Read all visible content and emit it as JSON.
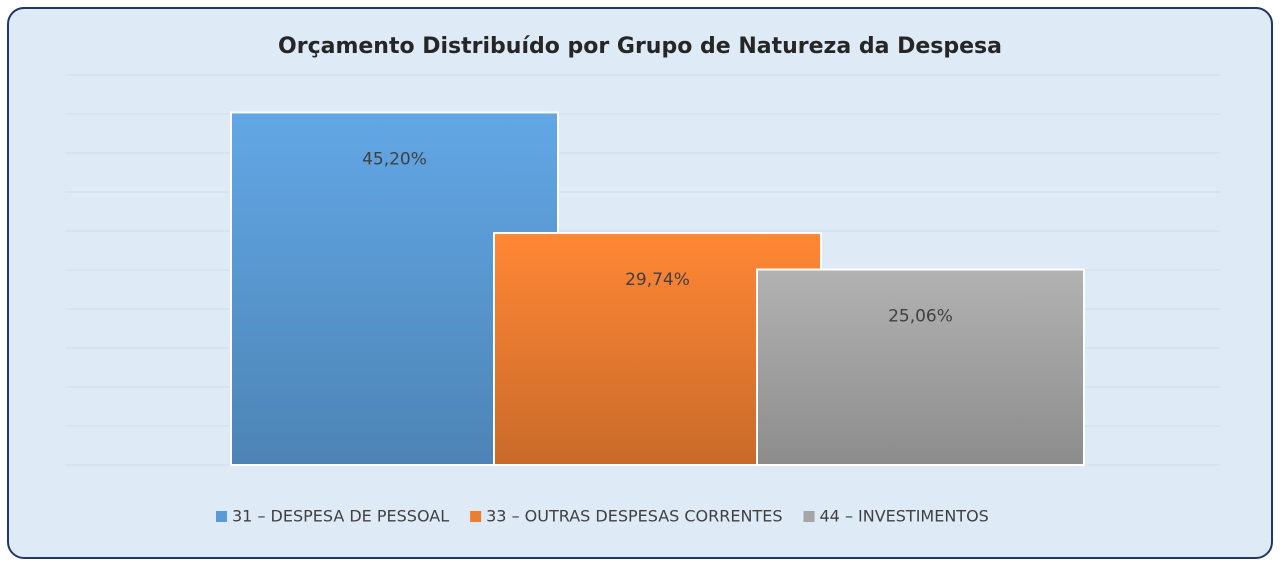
{
  "chart_data": {
    "type": "bar",
    "title": "Orçamento Distribuído por Grupo de Natureza da Despesa",
    "categories": [
      "31 – DESPESA DE PESSOAL",
      "33 – OUTRAS DESPESAS CORRENTES",
      "44 – INVESTIMENTOS"
    ],
    "values": [
      45.2,
      29.74,
      25.06
    ],
    "value_labels": [
      "45,20%",
      "29,74%",
      "25,06%"
    ],
    "colors": [
      "#5b9bd5",
      "#ed7d31",
      "#a5a5a5"
    ],
    "ylim": [
      0,
      50
    ],
    "yticks": [
      0,
      5,
      10,
      15,
      20,
      25,
      30,
      35,
      40,
      45,
      50
    ],
    "grid": true,
    "legend": "bottom"
  }
}
